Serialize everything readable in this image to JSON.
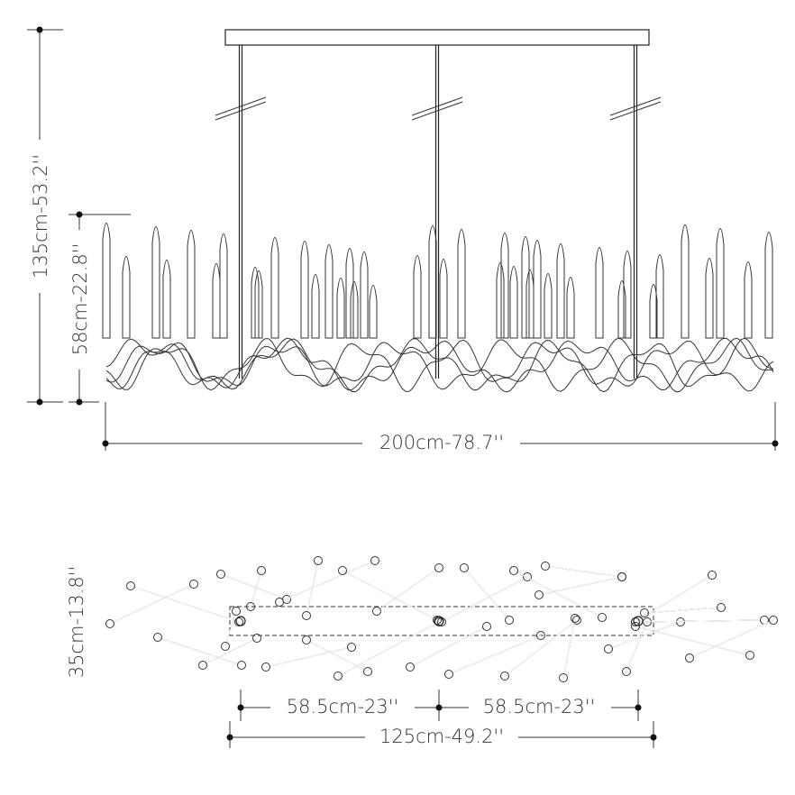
{
  "elevation": {
    "total_height": "135cm-53.2''",
    "body_height": "58cm-22.8''",
    "width": "200cm-78.7''"
  },
  "plan": {
    "depth": "35cm-13.8''",
    "spacing_left": "58.5cm-23''",
    "spacing_right": "58.5cm-23''",
    "canopy_length": "125cm-49.2''"
  }
}
